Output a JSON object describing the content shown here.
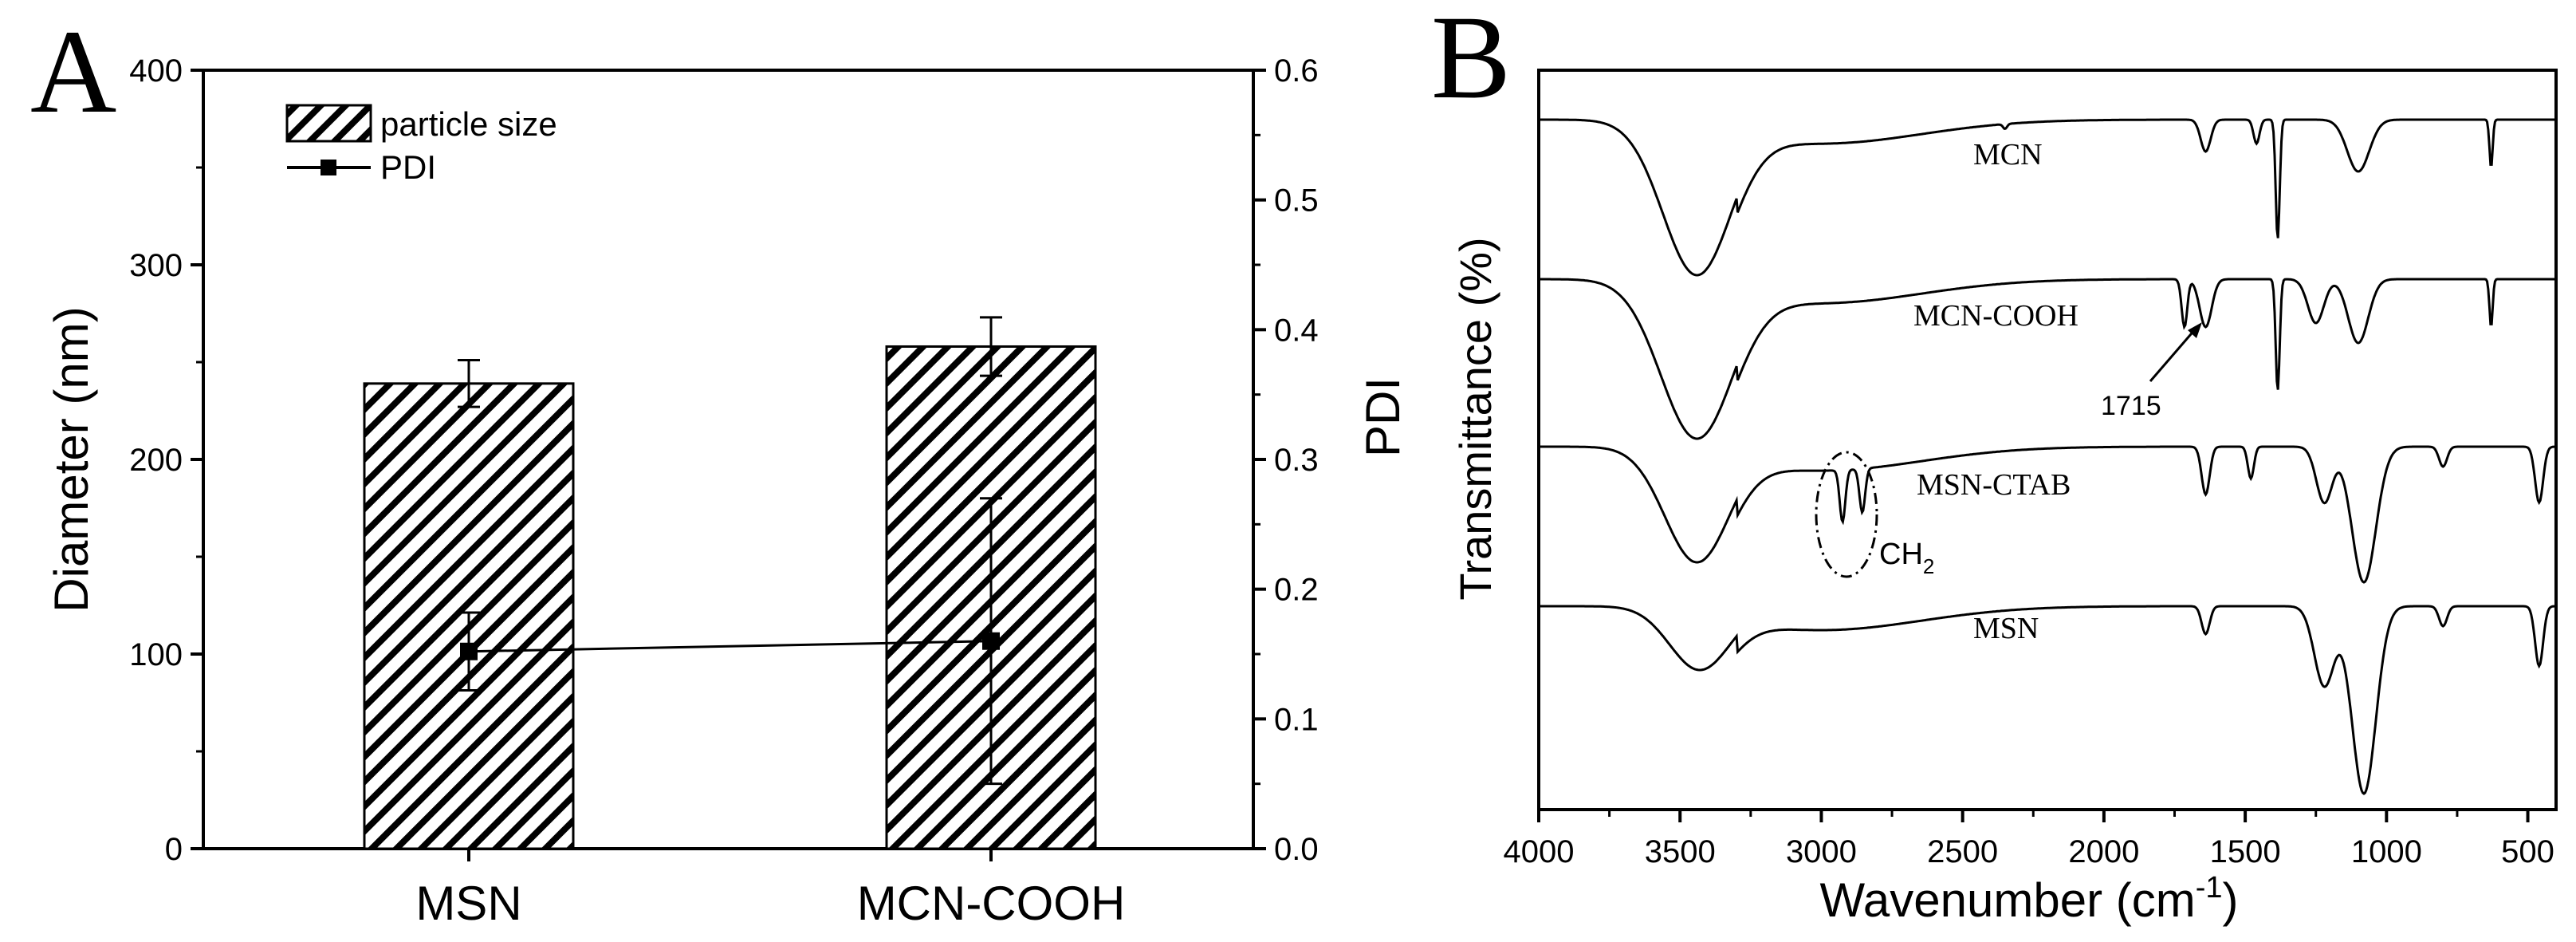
{
  "panel_a_label": "A",
  "panel_b_label": "B",
  "chart_data": [
    {
      "panel": "A",
      "type": "bar",
      "categories": [
        "MSN",
        "MCN-COOH"
      ],
      "ylabel": "Diameter (nm)",
      "y2label": "PDI",
      "ylim": [
        0,
        400
      ],
      "y2lim": [
        0,
        0.6
      ],
      "yticks": [
        "0",
        "100",
        "200",
        "300",
        "400"
      ],
      "y2ticks": [
        "0.0",
        "0.1",
        "0.2",
        "0.3",
        "0.4",
        "0.5",
        "0.6"
      ],
      "legend": [
        "particle size",
        "PDI"
      ],
      "series": [
        {
          "name": "particle size",
          "kind": "bar",
          "axis": "left",
          "values": [
            239,
            258
          ],
          "errors": [
            12,
            15
          ]
        },
        {
          "name": "PDI",
          "kind": "line",
          "axis": "right",
          "values": [
            0.152,
            0.16
          ],
          "errors": [
            0.03,
            0.11
          ]
        }
      ]
    },
    {
      "panel": "B",
      "type": "line",
      "xlabel": "Wavenumber (cm",
      "xlabel_sup": "-1",
      "xlabel_close": ")",
      "ylabel": "Transmittance (%)",
      "xlim": [
        4000,
        400
      ],
      "xticks": [
        "4000",
        "3500",
        "3000",
        "2500",
        "2000",
        "1500",
        "1000",
        "500"
      ],
      "series": [
        {
          "name": "MCN",
          "label": "MCN"
        },
        {
          "name": "MCN-COOH",
          "label": "MCN-COOH"
        },
        {
          "name": "MSN-CTAB",
          "label": "MSN-CTAB"
        },
        {
          "name": "MSN",
          "label": "MSN"
        }
      ],
      "annotations": [
        {
          "text": "1715",
          "x": 1715
        },
        {
          "text": "CH",
          "sub": "2",
          "x": 2900
        }
      ]
    }
  ]
}
